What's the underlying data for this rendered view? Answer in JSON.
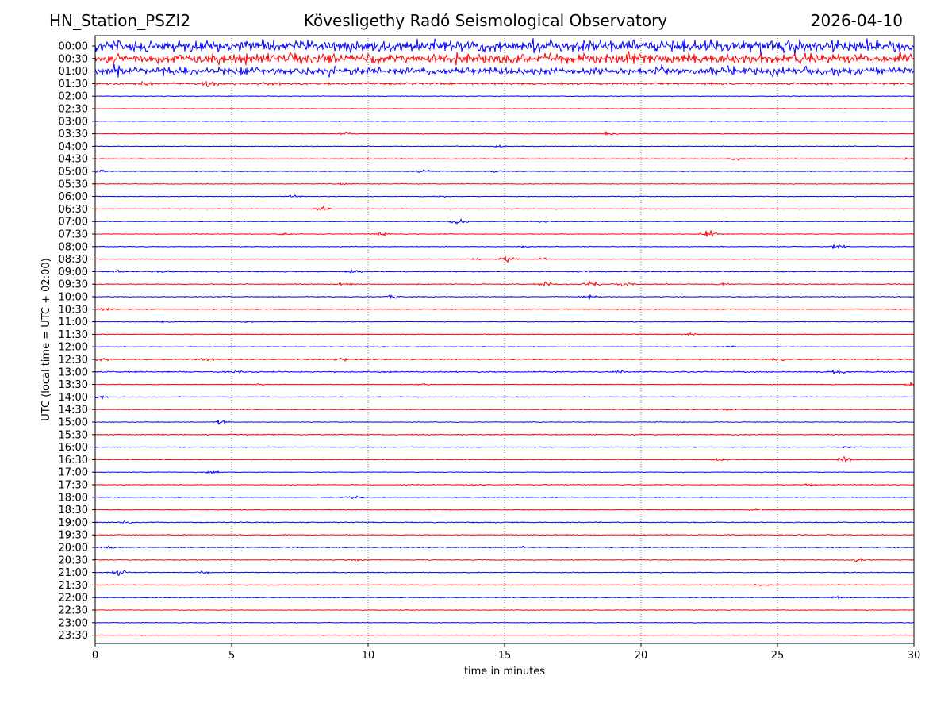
{
  "header": {
    "left": "HN_Station_PSZI2",
    "center": "Kövesligethy Radó Seismological Observatory",
    "right": "2026-04-10"
  },
  "chart_data": {
    "type": "line",
    "title": "Kövesligethy Radó Seismological Observatory",
    "xlabel": "time in minutes",
    "ylabel": "UTC (local time = UTC + 02:00)",
    "xlim": [
      0,
      30
    ],
    "xticks": [
      "0",
      "5",
      "10",
      "15",
      "20",
      "25",
      "30"
    ],
    "grid": "vertical dotted lines at x ticks",
    "colors": {
      "even_trace": "#0000ff",
      "odd_trace": "#ff0000",
      "grid": "#555555",
      "axis": "#000000"
    },
    "rows": [
      {
        "label": "00:00",
        "amp": 8,
        "events": []
      },
      {
        "label": "00:30",
        "amp": 7,
        "events": []
      },
      {
        "label": "01:00",
        "amp": 5,
        "events": [
          [
            0.7,
            5
          ]
        ]
      },
      {
        "label": "01:30",
        "amp": 1.5,
        "events": [
          [
            1.8,
            2
          ],
          [
            4.2,
            4
          ],
          [
            6.5,
            2
          ]
        ]
      },
      {
        "label": "02:00",
        "amp": 0.5,
        "events": []
      },
      {
        "label": "02:30",
        "amp": 0.4,
        "events": []
      },
      {
        "label": "03:00",
        "amp": 0.5,
        "events": []
      },
      {
        "label": "03:30",
        "amp": 0.5,
        "events": [
          [
            9.2,
            2
          ],
          [
            18.8,
            1.5
          ]
        ]
      },
      {
        "label": "04:00",
        "amp": 0.5,
        "events": [
          [
            14.8,
            1.5
          ]
        ]
      },
      {
        "label": "04:30",
        "amp": 0.5,
        "events": [
          [
            23.5,
            1.5
          ],
          [
            29.7,
            1
          ]
        ]
      },
      {
        "label": "05:00",
        "amp": 0.5,
        "events": [
          [
            0.2,
            2
          ],
          [
            12,
            3
          ],
          [
            14.6,
            1.5
          ]
        ]
      },
      {
        "label": "05:30",
        "amp": 0.5,
        "events": [
          [
            9.1,
            1
          ]
        ]
      },
      {
        "label": "06:00",
        "amp": 0.5,
        "events": [
          [
            7.3,
            1.5
          ],
          [
            12.6,
            1
          ]
        ]
      },
      {
        "label": "06:30",
        "amp": 0.5,
        "events": [
          [
            8.3,
            4
          ]
        ]
      },
      {
        "label": "07:00",
        "amp": 0.5,
        "events": [
          [
            13.3,
            5
          ],
          [
            16.4,
            1
          ]
        ]
      },
      {
        "label": "07:30",
        "amp": 0.5,
        "events": [
          [
            6.9,
            2
          ],
          [
            10.5,
            2.5
          ],
          [
            22.5,
            5
          ]
        ]
      },
      {
        "label": "08:00",
        "amp": 0.5,
        "events": [
          [
            27.2,
            3
          ],
          [
            15.8,
            1
          ]
        ]
      },
      {
        "label": "08:30",
        "amp": 0.5,
        "events": [
          [
            14,
            1.5
          ],
          [
            15.1,
            6
          ],
          [
            16.4,
            1.5
          ]
        ]
      },
      {
        "label": "09:00",
        "amp": 0.7,
        "events": [
          [
            0.8,
            1.5
          ],
          [
            2.5,
            1.5
          ],
          [
            9.5,
            2
          ],
          [
            18,
            1.5
          ]
        ]
      },
      {
        "label": "09:30",
        "amp": 0.7,
        "events": [
          [
            9.1,
            1.5
          ],
          [
            16.6,
            3
          ],
          [
            18.2,
            4
          ],
          [
            19.4,
            2
          ],
          [
            23,
            1.5
          ]
        ]
      },
      {
        "label": "10:00",
        "amp": 0.6,
        "events": [
          [
            10.9,
            2
          ],
          [
            18.1,
            2
          ]
        ]
      },
      {
        "label": "10:30",
        "amp": 0.6,
        "events": [
          [
            0.4,
            1.5
          ]
        ]
      },
      {
        "label": "11:00",
        "amp": 0.5,
        "events": [
          [
            2.5,
            1
          ],
          [
            5.5,
            1
          ]
        ]
      },
      {
        "label": "11:30",
        "amp": 0.5,
        "events": [
          [
            21.8,
            1.5
          ]
        ]
      },
      {
        "label": "12:00",
        "amp": 0.5,
        "events": [
          [
            23.2,
            1.5
          ]
        ]
      },
      {
        "label": "12:30",
        "amp": 0.8,
        "events": [
          [
            0.3,
            3
          ],
          [
            4.1,
            2.5
          ],
          [
            9,
            2.5
          ],
          [
            25,
            2
          ]
        ]
      },
      {
        "label": "13:00",
        "amp": 0.9,
        "events": [
          [
            5.1,
            1.5
          ],
          [
            19.2,
            1.5
          ],
          [
            27.2,
            2.5
          ]
        ]
      },
      {
        "label": "13:30",
        "amp": 0.5,
        "events": [
          [
            6,
            1
          ],
          [
            12,
            1
          ],
          [
            29.9,
            2
          ]
        ]
      },
      {
        "label": "14:00",
        "amp": 0.5,
        "events": [
          [
            0.2,
            2
          ]
        ]
      },
      {
        "label": "14:30",
        "amp": 0.5,
        "events": [
          [
            23.2,
            1
          ]
        ]
      },
      {
        "label": "15:00",
        "amp": 0.5,
        "events": [
          [
            4.6,
            3
          ]
        ]
      },
      {
        "label": "15:30",
        "amp": 0.7,
        "events": []
      },
      {
        "label": "16:00",
        "amp": 0.5,
        "events": [
          [
            27.5,
            1.5
          ]
        ]
      },
      {
        "label": "16:30",
        "amp": 0.5,
        "events": [
          [
            27.5,
            5
          ],
          [
            22.8,
            1.5
          ]
        ]
      },
      {
        "label": "17:00",
        "amp": 0.5,
        "events": [
          [
            4.3,
            2
          ]
        ]
      },
      {
        "label": "17:30",
        "amp": 0.6,
        "events": [
          [
            13.9,
            1.5
          ],
          [
            26.2,
            1.5
          ]
        ]
      },
      {
        "label": "18:00",
        "amp": 0.5,
        "events": [
          [
            9.5,
            2
          ]
        ]
      },
      {
        "label": "18:30",
        "amp": 0.6,
        "events": [
          [
            24.2,
            1.5
          ]
        ]
      },
      {
        "label": "19:00",
        "amp": 0.7,
        "events": [
          [
            1.2,
            1.5
          ]
        ]
      },
      {
        "label": "19:30",
        "amp": 0.7,
        "events": []
      },
      {
        "label": "20:00",
        "amp": 0.7,
        "events": [
          [
            0.5,
            2
          ],
          [
            15.5,
            1.5
          ]
        ]
      },
      {
        "label": "20:30",
        "amp": 0.6,
        "events": [
          [
            28,
            3.5
          ],
          [
            9.5,
            1.5
          ]
        ]
      },
      {
        "label": "21:00",
        "amp": 0.6,
        "events": [
          [
            0.9,
            4
          ],
          [
            4,
            2
          ]
        ]
      },
      {
        "label": "21:30",
        "amp": 0.6,
        "events": [
          [
            24.5,
            1.5
          ]
        ]
      },
      {
        "label": "22:00",
        "amp": 0.6,
        "events": [
          [
            27.2,
            1.5
          ]
        ]
      },
      {
        "label": "22:30",
        "amp": 0.5,
        "events": []
      },
      {
        "label": "23:00",
        "amp": 0.5,
        "events": []
      },
      {
        "label": "23:30",
        "amp": 0.5,
        "events": []
      }
    ]
  }
}
